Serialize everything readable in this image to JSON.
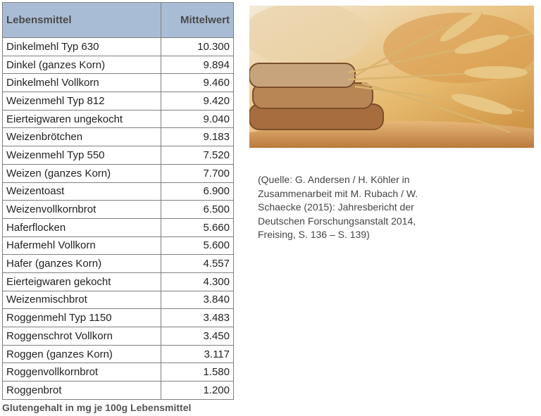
{
  "table": {
    "header": [
      "Lebensmittel",
      "Mittelwert"
    ],
    "rows": [
      [
        "Dinkelmehl Typ 630",
        "10.300"
      ],
      [
        "Dinkel (ganzes Korn)",
        "9.894"
      ],
      [
        "Dinkelmehl Vollkorn",
        "9.460"
      ],
      [
        "Weizenmehl Typ 812",
        "9.420"
      ],
      [
        "Eierteigwaren ungekocht",
        "9.040"
      ],
      [
        "Weizenbrötchen",
        "9.183"
      ],
      [
        "Weizenmehl Typ 550",
        "7.520"
      ],
      [
        "Weizen (ganzes Korn)",
        "7.700"
      ],
      [
        "Weizentoast",
        "6.900"
      ],
      [
        "Weizenvollkornbrot",
        "6.500"
      ],
      [
        "Haferflocken",
        "5.660"
      ],
      [
        "Hafermehl Vollkorn",
        "5.600"
      ],
      [
        "Hafer (ganzes Korn)",
        "4.557"
      ],
      [
        "Eierteigwaren gekocht",
        "4.300"
      ],
      [
        "Weizenmischbrot",
        "3.840"
      ],
      [
        "Roggenmehl Typ 1150",
        "3.483"
      ],
      [
        "Roggenschrot Vollkorn",
        "3.450"
      ],
      [
        "Roggen (ganzes Korn)",
        "3.117"
      ],
      [
        "Roggenvollkornbrot",
        "1.580"
      ],
      [
        "Roggenbrot",
        "1.200"
      ]
    ],
    "caption": "Glutengehalt in mg je 100g Lebensmittel"
  },
  "source": [
    "(Quelle: G. Andersen / H. Köhler in",
    "Zusammenarbeit mit M. Rubach / W.",
    "Schaecke (2015): Jahresbericht der",
    "Deutschen Forschungsanstalt 2014,",
    "Freising, S. 136 – S. 139)"
  ]
}
